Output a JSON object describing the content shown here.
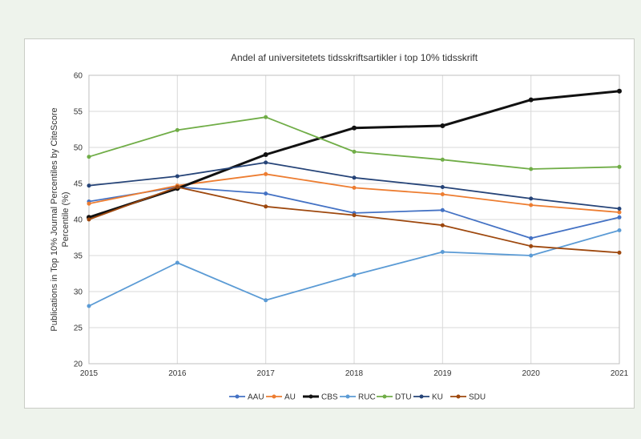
{
  "chart_data": {
    "type": "line",
    "title": "Andel af universitetets tidsskriftsartikler i top 10% tidsskrift",
    "ylabel": "Publications in Top 10% Journal Percentiles by CiteScore Percentile (%)",
    "xlabel": "",
    "categories": [
      "2015",
      "2016",
      "2017",
      "2018",
      "2019",
      "2020",
      "2021"
    ],
    "ylim": [
      20,
      60
    ],
    "yticks": [
      20,
      25,
      30,
      35,
      40,
      45,
      50,
      55,
      60
    ],
    "grid": true,
    "legend_position": "bottom",
    "series": [
      {
        "name": "AAU",
        "color": "#4472c4",
        "values": [
          42.5,
          44.5,
          43.6,
          40.9,
          41.3,
          37.4,
          40.3
        ]
      },
      {
        "name": "AU",
        "color": "#ed7d31",
        "values": [
          42.2,
          44.7,
          46.3,
          44.4,
          43.5,
          42.0,
          41.0
        ]
      },
      {
        "name": "CBS",
        "color": "#111111",
        "values": [
          40.3,
          44.3,
          49.0,
          52.7,
          53.0,
          56.6,
          57.8
        ]
      },
      {
        "name": "RUC",
        "color": "#5b9bd5",
        "values": [
          28.0,
          34.0,
          28.8,
          32.3,
          35.5,
          35.0,
          38.5
        ]
      },
      {
        "name": "DTU",
        "color": "#70ad47",
        "values": [
          48.7,
          52.4,
          54.2,
          49.4,
          48.3,
          47.0,
          47.3
        ]
      },
      {
        "name": "KU",
        "color": "#264478",
        "values": [
          44.7,
          46.0,
          47.9,
          45.8,
          44.5,
          42.9,
          41.5
        ]
      },
      {
        "name": "SDU",
        "color": "#9e480e",
        "values": [
          40.0,
          44.5,
          41.8,
          40.6,
          39.2,
          36.3,
          35.4
        ]
      }
    ]
  }
}
